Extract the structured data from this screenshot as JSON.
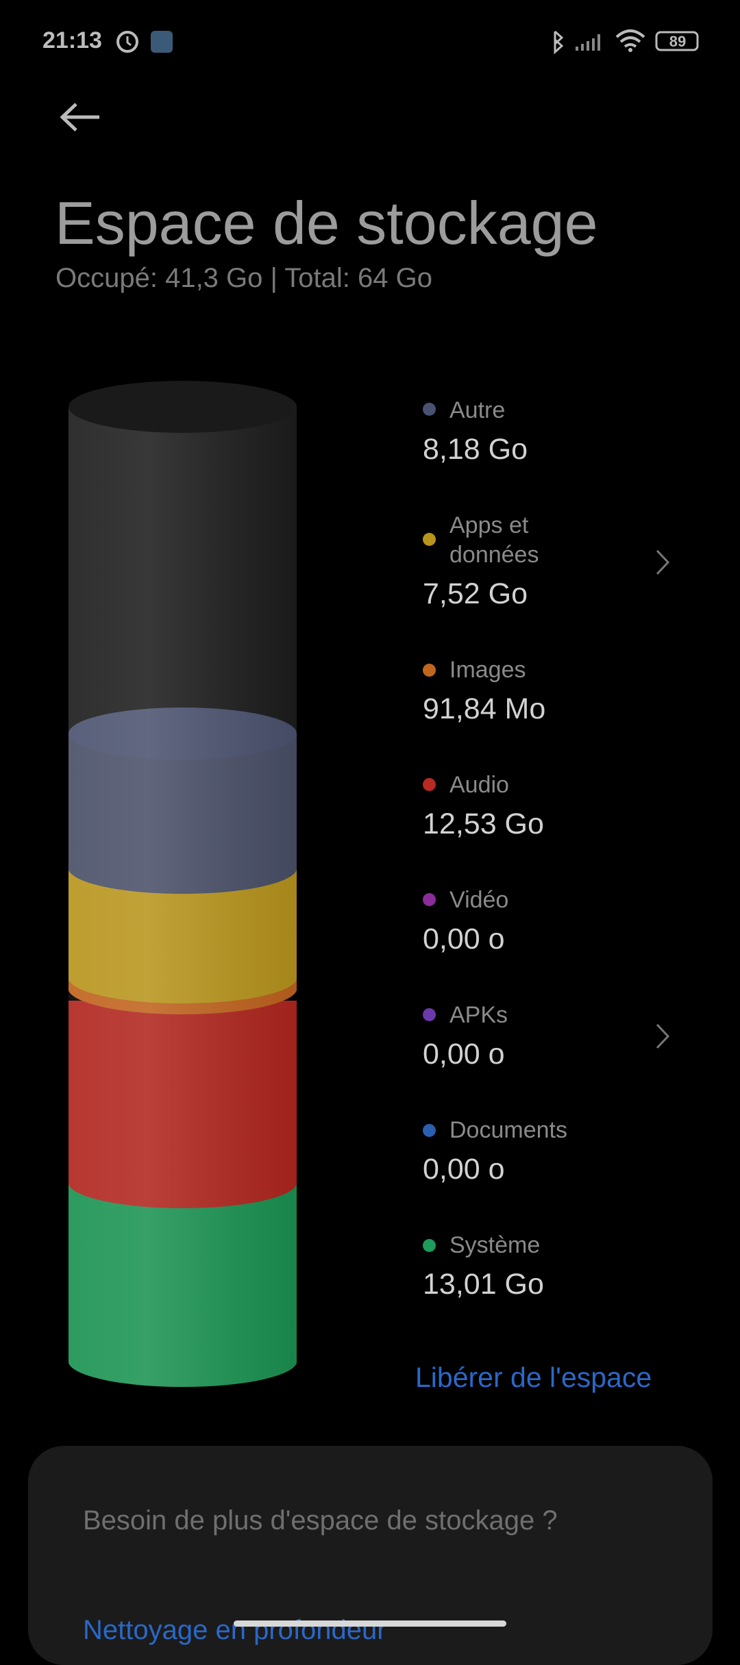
{
  "status_bar": {
    "time": "21:13",
    "battery": "89"
  },
  "header": {
    "title": "Espace de stockage",
    "subtitle": "Occupé: 41,3 Go | Total: 64 Go"
  },
  "items": [
    {
      "label": "Autre",
      "value": "8,18 Go"
    },
    {
      "label": "Apps et données",
      "value": "7,52 Go"
    },
    {
      "label": "Images",
      "value": "91,84 Mo"
    },
    {
      "label": "Audio",
      "value": "12,53 Go"
    },
    {
      "label": "Vidéo",
      "value": "0,00 o"
    },
    {
      "label": "APKs",
      "value": "0,00 o"
    },
    {
      "label": "Documents",
      "value": "0,00 o"
    },
    {
      "label": "Système",
      "value": "13,01 Go"
    }
  ],
  "free_button": "Libérer de l'espace",
  "card": {
    "text": "Besoin de plus d'espace de stockage ?",
    "link": "Nettoyage en profondeur"
  }
}
